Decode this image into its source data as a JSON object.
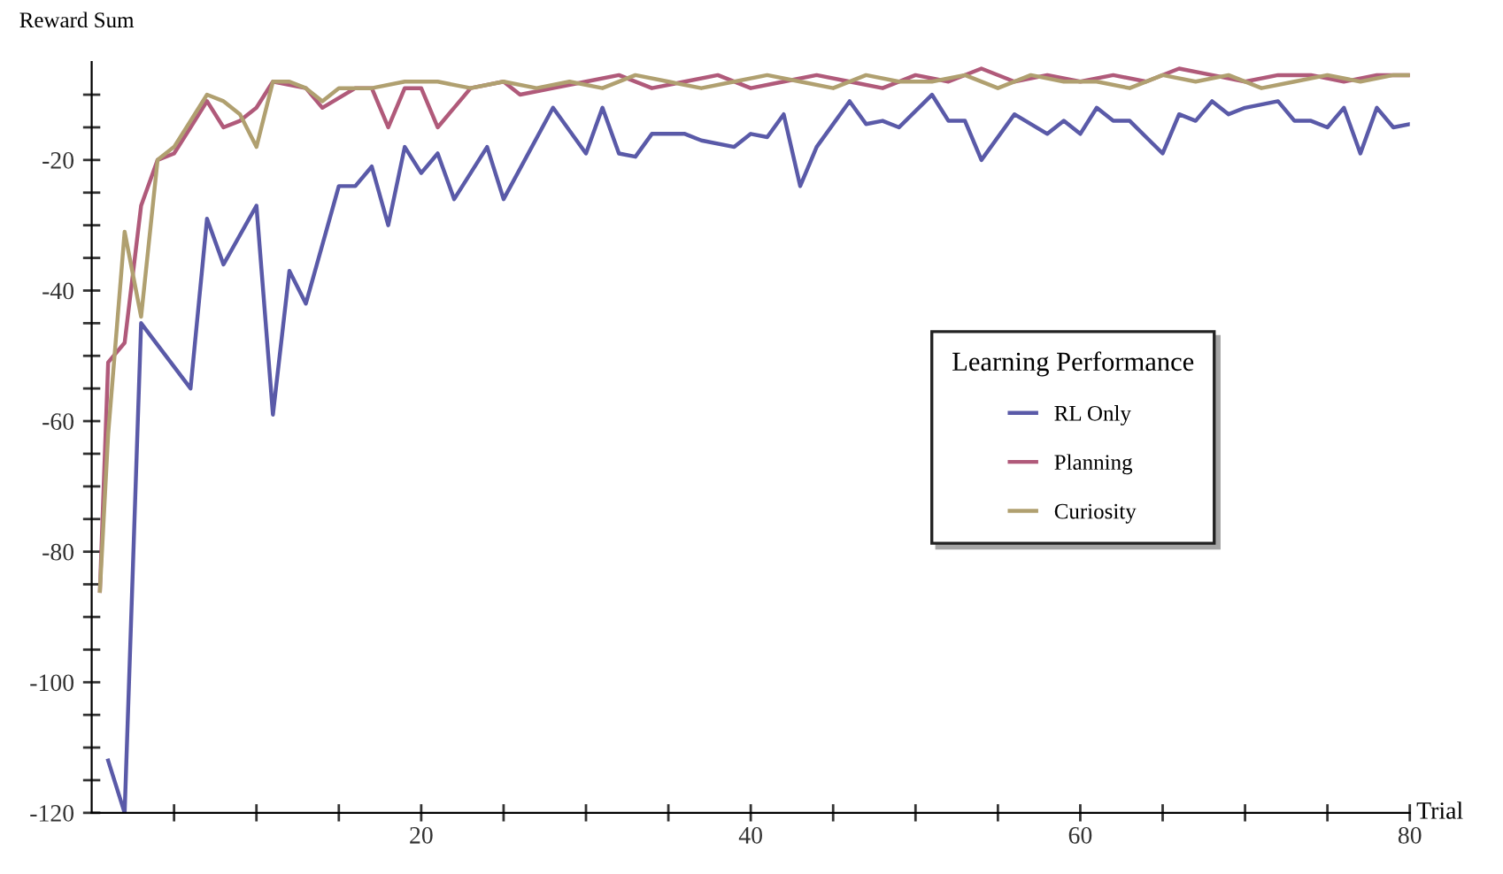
{
  "chart_data": {
    "type": "line",
    "ylabel": "Reward Sum",
    "xlabel": "Trial",
    "legend_title": "Learning Performance",
    "legend": "right",
    "grid": false,
    "marker": "none",
    "line_style": "solid",
    "xlim": [
      0,
      80
    ],
    "ylim": [
      -120,
      -5
    ],
    "xticks": [
      {
        "value": 5,
        "label": null
      },
      {
        "value": 10,
        "label": null
      },
      {
        "value": 15,
        "label": null
      },
      20,
      {
        "value": 25,
        "label": null
      },
      {
        "value": 30,
        "label": null
      },
      {
        "value": 35,
        "label": null
      },
      40,
      {
        "value": 45,
        "label": null
      },
      {
        "value": 50,
        "label": null
      },
      {
        "value": 55,
        "label": null
      },
      60,
      {
        "value": 65,
        "label": null
      },
      {
        "value": 70,
        "label": null
      },
      {
        "value": 75,
        "label": null
      },
      80
    ],
    "yticks": [
      -120,
      {
        "value": -115,
        "label": null
      },
      {
        "value": -110,
        "label": null
      },
      {
        "value": -105,
        "label": null
      },
      -100,
      {
        "value": -95,
        "label": null
      },
      {
        "value": -90,
        "label": null
      },
      {
        "value": -85,
        "label": null
      },
      -80,
      {
        "value": -75,
        "label": null
      },
      {
        "value": -70,
        "label": null
      },
      {
        "value": -65,
        "label": null
      },
      -60,
      {
        "value": -55,
        "label": null
      },
      {
        "value": -50,
        "label": null
      },
      {
        "value": -45,
        "label": null
      },
      -40,
      {
        "value": -35,
        "label": null
      },
      {
        "value": -30,
        "label": null
      },
      {
        "value": -25,
        "label": null
      },
      -20,
      {
        "value": -15,
        "label": null
      },
      {
        "value": -10,
        "label": null
      }
    ],
    "series": [
      {
        "name": "RL Only",
        "color": "#5a5aa8",
        "x": [
          1,
          2,
          3,
          6,
          7,
          8,
          10,
          11,
          12,
          13,
          15,
          16,
          17,
          18,
          19,
          20,
          21,
          22,
          24,
          25,
          28,
          30,
          31,
          32,
          33,
          34,
          36,
          37,
          39,
          40,
          41,
          42,
          43,
          44,
          46,
          47,
          48,
          49,
          51,
          52,
          53,
          54,
          56,
          58,
          59,
          60,
          61,
          62,
          63,
          65,
          66,
          67,
          68,
          69,
          70,
          72,
          73,
          74,
          75,
          76,
          77,
          78,
          79,
          80
        ],
        "values": [
          -112,
          -120,
          -45,
          -55,
          -29,
          -36,
          -27,
          -59,
          -37,
          -42,
          -24,
          -24,
          -21,
          -30,
          -18,
          -22,
          -19,
          -26,
          -18,
          -26,
          -12,
          -19,
          -12,
          -19,
          -19.5,
          -16,
          -16,
          -17,
          -18,
          -16,
          -16.5,
          -13,
          -24,
          -18,
          -11,
          -14.5,
          -14,
          -15,
          -10,
          -14,
          -14,
          -20,
          -13,
          -16,
          -14,
          -16,
          -12,
          -14,
          -14,
          -19,
          -13,
          -14,
          -11,
          -13,
          -12,
          -11,
          -14,
          -14,
          -15,
          -12,
          -19,
          -12,
          -15,
          -14.5
        ]
      },
      {
        "name": "Planning",
        "color": "#b05a7a",
        "x": [
          0.5,
          1,
          2,
          3,
          4,
          5,
          6,
          7,
          8,
          9,
          10,
          11,
          13,
          14,
          16,
          17,
          18,
          19,
          20,
          21,
          23,
          25,
          26,
          28,
          30,
          32,
          34,
          36,
          38,
          40,
          42,
          44,
          46,
          48,
          50,
          52,
          54,
          56,
          58,
          60,
          62,
          64,
          66,
          68,
          70,
          72,
          74,
          76,
          78,
          80
        ],
        "values": [
          -86,
          -51,
          -48,
          -27,
          -20,
          -19,
          -15,
          -11,
          -15,
          -14,
          -12,
          -8,
          -9,
          -12,
          -9,
          -9,
          -15,
          -9,
          -9,
          -15,
          -9,
          -8,
          -10,
          -9,
          -8,
          -7,
          -9,
          -8,
          -7,
          -9,
          -8,
          -7,
          -8,
          -9,
          -7,
          -8,
          -6,
          -8,
          -7,
          -8,
          -7,
          -8,
          -6,
          -7,
          -8,
          -7,
          -7,
          -8,
          -7,
          -7
        ]
      },
      {
        "name": "Curiosity",
        "color": "#b0a070",
        "x": [
          0.5,
          1,
          2,
          3,
          4,
          5,
          6,
          7,
          8,
          9,
          10,
          11,
          12,
          13,
          14,
          15,
          17,
          19,
          21,
          23,
          25,
          27,
          29,
          31,
          33,
          35,
          37,
          39,
          41,
          43,
          45,
          47,
          49,
          51,
          53,
          55,
          57,
          59,
          61,
          63,
          65,
          67,
          69,
          71,
          73,
          75,
          77,
          79,
          80
        ],
        "values": [
          -86,
          -62,
          -31,
          -44,
          -20,
          -18,
          -14,
          -10,
          -11,
          -13,
          -18,
          -8,
          -8,
          -9,
          -11,
          -9,
          -9,
          -8,
          -8,
          -9,
          -8,
          -9,
          -8,
          -9,
          -7,
          -8,
          -9,
          -8,
          -7,
          -8,
          -9,
          -7,
          -8,
          -8,
          -7,
          -9,
          -7,
          -8,
          -8,
          -9,
          -7,
          -8,
          -7,
          -9,
          -8,
          -7,
          -8,
          -7,
          -7
        ]
      }
    ]
  }
}
